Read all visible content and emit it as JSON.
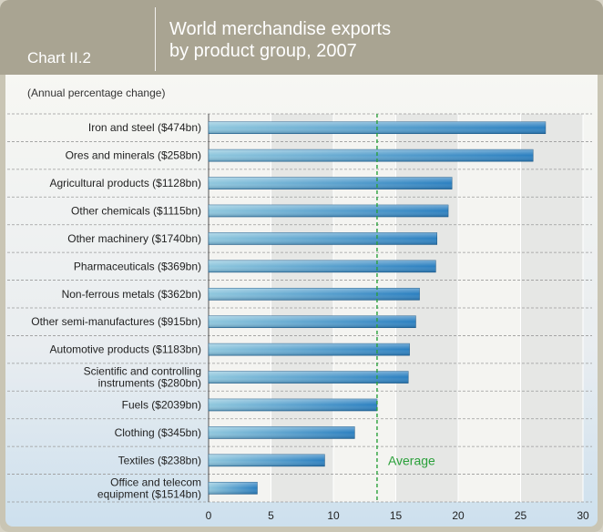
{
  "header": {
    "chart_id": "Chart II.2",
    "title_line1": "World merchandise exports",
    "title_line2": "by product group, 2007"
  },
  "colors": {
    "bar": "#2a7fc0",
    "average_line": "#2aa03a",
    "header": "#a9a492"
  },
  "chart_data": {
    "type": "bar",
    "orientation": "horizontal",
    "title": "World merchandise exports by product group, 2007",
    "subtitle": "(Annual percentage change)",
    "categories": [
      [
        "Iron and steel ($474bn)"
      ],
      [
        "Ores and minerals ($258bn)"
      ],
      [
        "Agricultural products ($1128bn)"
      ],
      [
        "Other chemicals ($1115bn)"
      ],
      [
        "Other machinery ($1740bn)"
      ],
      [
        "Pharmaceuticals ($369bn)"
      ],
      [
        "Non-ferrous metals ($362bn)"
      ],
      [
        "Other semi-manufactures ($915bn)"
      ],
      [
        "Automotive products ($1183bn)"
      ],
      [
        "Scientific and controlling",
        "instruments ($280bn)"
      ],
      [
        "Fuels ($2039bn)"
      ],
      [
        "Clothing ($345bn)"
      ],
      [
        "Textiles ($238bn)"
      ],
      [
        "Office and telecom",
        "equipment ($1514bn)"
      ]
    ],
    "values": [
      27,
      26,
      19.5,
      19.2,
      18.3,
      18.2,
      16.9,
      16.6,
      16.1,
      16.0,
      13.5,
      11.7,
      9.3,
      3.9
    ],
    "average": {
      "label": "Average",
      "value": 13.5
    },
    "xlim": [
      0,
      30
    ],
    "xticks": [
      0,
      5,
      10,
      15,
      20,
      25,
      30
    ],
    "grid": true
  }
}
